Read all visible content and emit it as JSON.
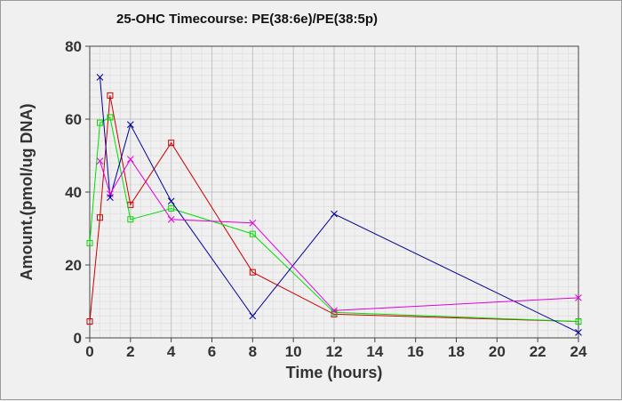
{
  "chart_data": {
    "type": "line",
    "title": "25-OHC Timecourse: PE(38:6e)/PE(38:5p)",
    "xlabel": "Time (hours)",
    "ylabel": "Amount.(pmol/ug DNA)",
    "xlim": [
      0,
      24
    ],
    "ylim": [
      0,
      80
    ],
    "xticks": [
      0,
      2,
      4,
      6,
      8,
      10,
      12,
      14,
      16,
      18,
      20,
      22,
      24
    ],
    "yticks": [
      0,
      20,
      40,
      60,
      80
    ],
    "grid": true,
    "legend": "none",
    "series": [
      {
        "color": "#cc0000",
        "marker": "square",
        "x": [
          0,
          0.5,
          1,
          2,
          4,
          8,
          12,
          24
        ],
        "y": [
          4.5,
          33,
          66.5,
          36.5,
          53.5,
          18,
          6.5,
          4.5
        ]
      },
      {
        "color": "#00dd00",
        "marker": "square",
        "x": [
          0,
          0.5,
          1,
          2,
          4,
          8,
          12,
          24
        ],
        "y": [
          26,
          59,
          60.5,
          32.5,
          35.5,
          28.5,
          7,
          4.5
        ]
      },
      {
        "color": "#000099",
        "marker": "x",
        "x": [
          0.5,
          1,
          2,
          4,
          8,
          12,
          24
        ],
        "y": [
          71.5,
          38.5,
          58.5,
          37.5,
          6,
          34,
          1.5
        ]
      },
      {
        "color": "#dd00dd",
        "marker": "x",
        "x": [
          0.5,
          1,
          2,
          4,
          8,
          12,
          24
        ],
        "y": [
          48.5,
          39.5,
          49,
          32.5,
          31.5,
          7.5,
          11
        ]
      }
    ]
  }
}
